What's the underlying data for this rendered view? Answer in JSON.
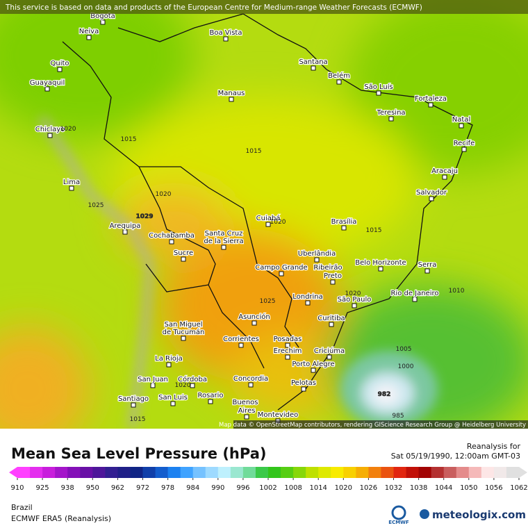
{
  "header": {
    "notice": "This service is based on data and products of the European Centre for Medium-range Weather Forecasts (ECMWF)"
  },
  "map": {
    "attribution": "Map data © OpenStreetMap contributors, rendering GIScience Research Group @ Heidelberg University",
    "cities": [
      "Bogota",
      "Neiva",
      "Quito",
      "Guayaquil",
      "Chiclayo",
      "Lima",
      "Arequipa",
      "Cochabamba",
      "Sucre",
      "Santa Cruz",
      "de la Sierra",
      "Cuiabá",
      "Boa Vista",
      "Manaus",
      "Santana",
      "Belém",
      "São Luís",
      "Fortaleza",
      "Teresina",
      "Natal",
      "Recife",
      "Aracaju",
      "Salvador",
      "Brasília",
      "Uberlândia",
      "Belo Horizonte",
      "Serra",
      "Campo Grande",
      "Ribeirão",
      "Preto",
      "Londrina",
      "São Paulo",
      "Rio de Janeiro",
      "Asunción",
      "Curitiba",
      "San Miguel",
      "de Tucumán",
      "Corrientes",
      "Posadas",
      "Erechim",
      "Criciúma",
      "La Rioja",
      "Porto Alegre",
      "San Juan",
      "Córdoba",
      "Concordia",
      "Pelotas",
      "Rosario",
      "Santiago",
      "San Luis",
      "Buenos",
      "Aires",
      "Montevideo"
    ],
    "isobars": [
      "1020",
      "1015",
      "1015",
      "1020",
      "1025",
      "1029",
      "1020",
      "1015",
      "1025",
      "1020",
      "1010",
      "1005",
      "1000",
      "982",
      "985",
      "1015",
      "1020"
    ]
  },
  "legend": {
    "title": "Mean Sea Level Pressure (hPa)",
    "ticks": [
      910,
      925,
      938,
      950,
      962,
      972,
      978,
      984,
      990,
      996,
      1002,
      1008,
      1014,
      1020,
      1026,
      1032,
      1038,
      1044,
      1050,
      1056,
      1062
    ]
  },
  "footer": {
    "reanalysis": "Reanalysis for",
    "date": "Sat 05/19/1990, 12:00am GMT-03",
    "region": "Brazil",
    "model": "ECMWF ERA5 (Reanalysis)",
    "ecmwf": "ECMWF",
    "brand": "meteologix.com"
  }
}
